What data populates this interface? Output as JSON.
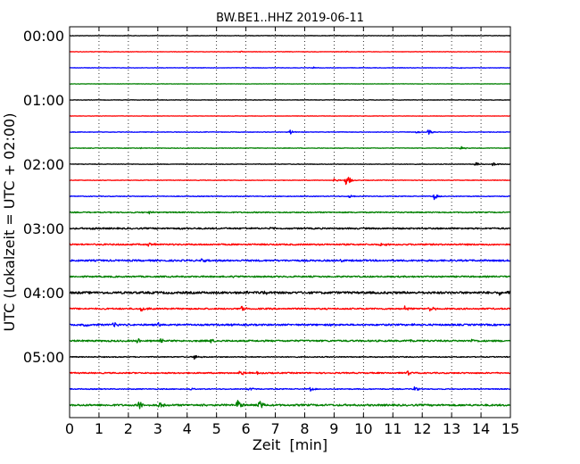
{
  "chart_data": {
    "type": "line",
    "title": "BW.BE1..HHZ 2019-06-11",
    "xlabel": "Zeit  [min]",
    "ylabel": "UTC (Lokalzeit = UTC + 02:00)",
    "xlim": [
      0,
      15
    ],
    "x_ticks": [
      "0",
      "1",
      "2",
      "3",
      "4",
      "5",
      "6",
      "7",
      "8",
      "9",
      "10",
      "11",
      "12",
      "13",
      "14",
      "15"
    ],
    "y_tick_labels": [
      "00:00",
      "01:00",
      "02:00",
      "03:00",
      "04:00",
      "05:00"
    ],
    "grid": "vertical dotted",
    "row_interval_min": 15,
    "colors": [
      "#000000",
      "#ff0000",
      "#0000ff",
      "#008000"
    ],
    "traces": [
      {
        "start": "00:00",
        "color": "#000000",
        "noise": 0.25,
        "events": []
      },
      {
        "start": "00:15",
        "color": "#ff0000",
        "noise": 0.25,
        "events": [
          [
            5.8,
            0.8
          ],
          [
            9.4,
            0.8
          ]
        ]
      },
      {
        "start": "00:30",
        "color": "#0000ff",
        "noise": 0.25,
        "events": [
          [
            8.3,
            0.9
          ],
          [
            13.3,
            1.0
          ]
        ]
      },
      {
        "start": "00:45",
        "color": "#008000",
        "noise": 0.2,
        "events": []
      },
      {
        "start": "01:00",
        "color": "#000000",
        "noise": 0.25,
        "events": []
      },
      {
        "start": "01:15",
        "color": "#ff0000",
        "noise": 0.2,
        "events": []
      },
      {
        "start": "01:30",
        "color": "#0000ff",
        "noise": 0.3,
        "events": [
          [
            7.5,
            2.5
          ],
          [
            12.2,
            3.5
          ],
          [
            11.8,
            1.2
          ]
        ]
      },
      {
        "start": "01:45",
        "color": "#008000",
        "noise": 0.3,
        "events": [
          [
            2.4,
            1.0
          ],
          [
            13.3,
            2.5
          ]
        ]
      },
      {
        "start": "02:00",
        "color": "#000000",
        "noise": 0.3,
        "events": [
          [
            13.8,
            2.5
          ],
          [
            14.4,
            2.8
          ]
        ]
      },
      {
        "start": "02:15",
        "color": "#ff0000",
        "noise": 0.3,
        "events": [
          [
            9.4,
            8.5
          ],
          [
            9.0,
            2.0
          ]
        ]
      },
      {
        "start": "02:30",
        "color": "#0000ff",
        "noise": 0.4,
        "events": [
          [
            9.5,
            3.0
          ],
          [
            12.4,
            4.0
          ]
        ]
      },
      {
        "start": "02:45",
        "color": "#008000",
        "noise": 0.6,
        "events": [
          [
            2.7,
            1.8
          ]
        ]
      },
      {
        "start": "03:00",
        "color": "#000000",
        "noise": 0.8,
        "events": [
          [
            0.7,
            1.5
          ],
          [
            3.8,
            1.2
          ],
          [
            6.8,
            1.2
          ],
          [
            12.1,
            1.2
          ]
        ]
      },
      {
        "start": "03:15",
        "color": "#ff0000",
        "noise": 0.8,
        "events": [
          [
            2.7,
            3.0
          ],
          [
            10.6,
            2.0
          ],
          [
            11.8,
            1.5
          ]
        ]
      },
      {
        "start": "03:30",
        "color": "#0000ff",
        "noise": 0.9,
        "events": [
          [
            4.5,
            1.8
          ],
          [
            9.2,
            1.5
          ]
        ]
      },
      {
        "start": "03:45",
        "color": "#008000",
        "noise": 0.8,
        "events": [
          [
            5.6,
            1.2
          ]
        ]
      },
      {
        "start": "04:00",
        "color": "#000000",
        "noise": 1.2,
        "events": [
          [
            6.6,
            3.5
          ],
          [
            6.0,
            2.0
          ],
          [
            14.6,
            4.5
          ],
          [
            14.9,
            3.5
          ]
        ]
      },
      {
        "start": "04:15",
        "color": "#ff0000",
        "noise": 0.8,
        "events": [
          [
            2.45,
            4.0
          ],
          [
            5.85,
            3.5
          ],
          [
            11.4,
            3.5
          ],
          [
            12.25,
            4.0
          ]
        ]
      },
      {
        "start": "04:30",
        "color": "#0000ff",
        "noise": 0.9,
        "events": [
          [
            0.5,
            2.5
          ],
          [
            1.5,
            3.0
          ],
          [
            3.0,
            2.5
          ],
          [
            5.5,
            1.8
          ],
          [
            8.9,
            2.0
          ],
          [
            11.6,
            1.5
          ]
        ]
      },
      {
        "start": "04:45",
        "color": "#008000",
        "noise": 0.9,
        "events": [
          [
            2.3,
            3.5
          ],
          [
            3.1,
            3.0
          ],
          [
            4.8,
            2.0
          ],
          [
            11.6,
            1.5
          ],
          [
            13.7,
            2.5
          ]
        ]
      },
      {
        "start": "05:00",
        "color": "#000000",
        "noise": 0.5,
        "events": [
          [
            4.25,
            3.0
          ]
        ]
      },
      {
        "start": "05:15",
        "color": "#ff0000",
        "noise": 0.7,
        "events": [
          [
            5.8,
            3.5
          ],
          [
            6.4,
            2.0
          ],
          [
            11.5,
            3.0
          ]
        ]
      },
      {
        "start": "05:30",
        "color": "#0000ff",
        "noise": 0.5,
        "events": [
          [
            4.1,
            3.0
          ],
          [
            6.1,
            2.5
          ],
          [
            8.2,
            2.5
          ],
          [
            11.7,
            3.5
          ]
        ]
      },
      {
        "start": "05:45",
        "color": "#008000",
        "noise": 1.0,
        "events": [
          [
            2.35,
            6.5
          ],
          [
            3.05,
            4.5
          ],
          [
            5.7,
            8.0
          ],
          [
            6.45,
            6.0
          ],
          [
            4.5,
            1.5
          ]
        ]
      }
    ]
  }
}
